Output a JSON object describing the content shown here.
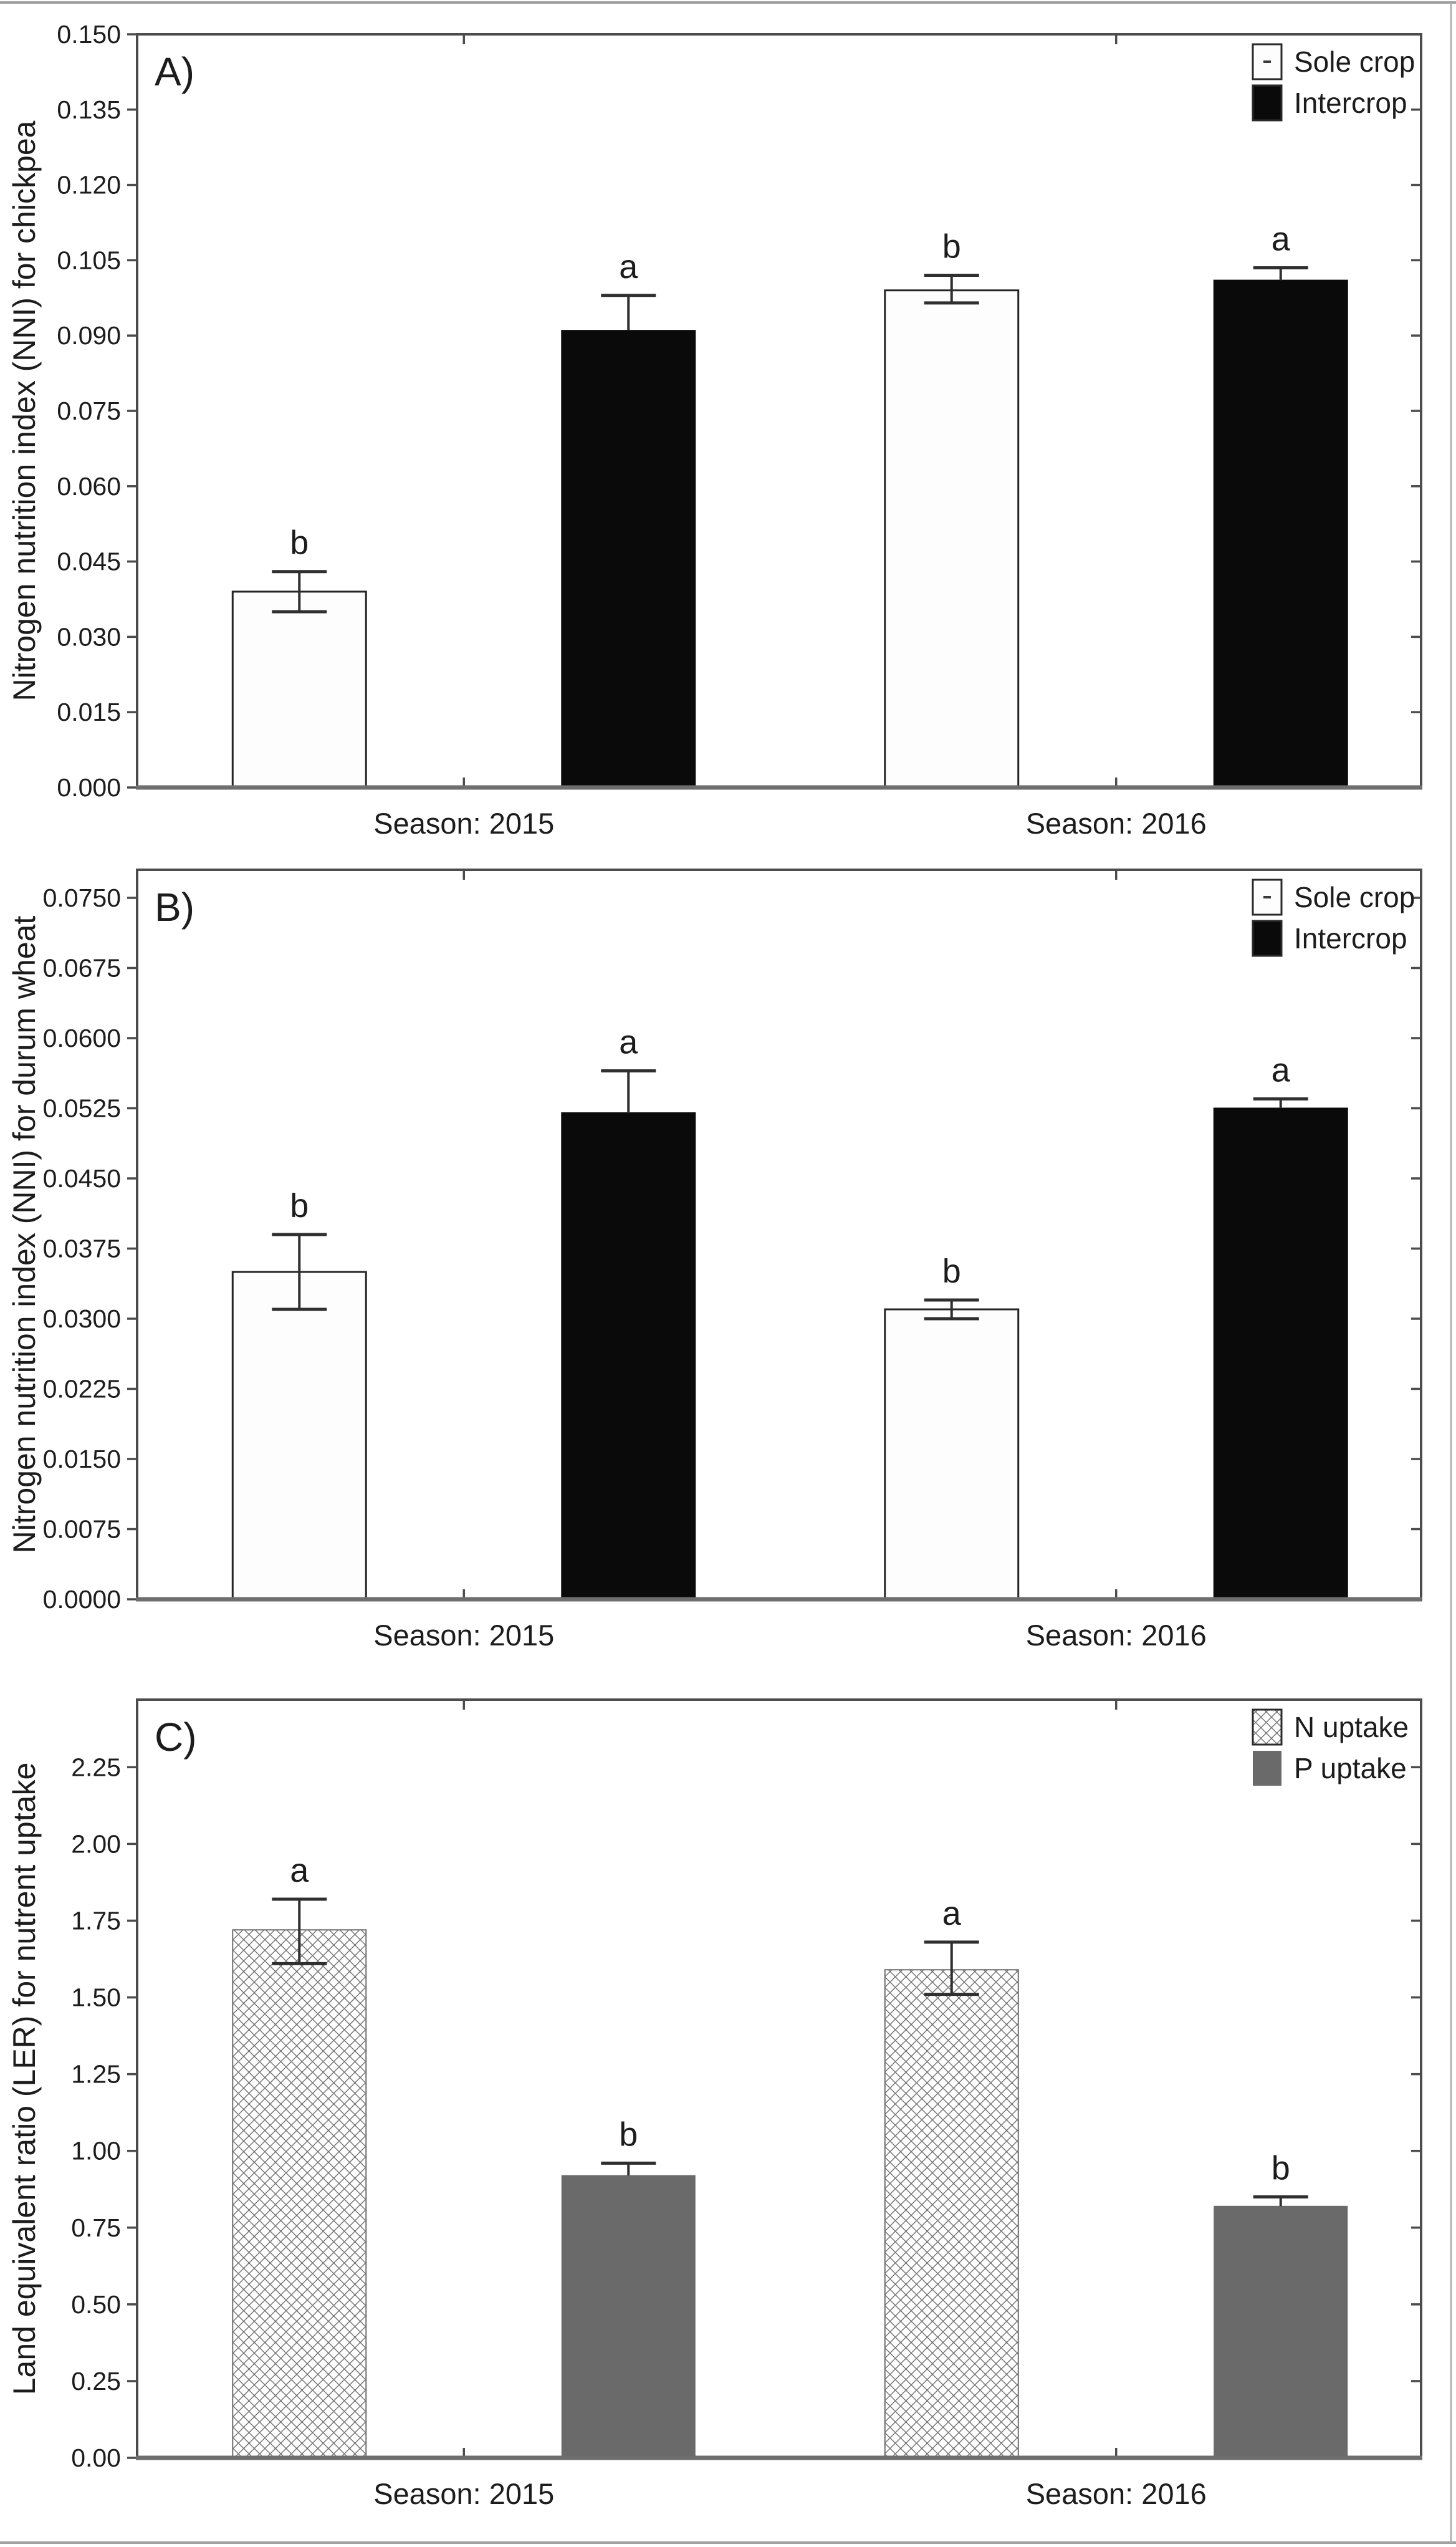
{
  "figure": {
    "background": "#ffffff",
    "edge_line_color": "#a0a0a0"
  },
  "colors": {
    "bar_white_fill": "#fdfdfd",
    "bar_black_fill": "#0a0a0a",
    "bar_gray_fill": "#6a6a6a",
    "hatch_stroke": "#6f6f6f",
    "bar_outline": "#262626",
    "frame": "#4c4c4c",
    "baseline_axis": "#6e6e6e",
    "whisker": "#2f2f2f",
    "text": "#1c1c1c"
  },
  "chart_data": [
    {
      "type": "bar",
      "panel_label": "A)",
      "ylabel": "Nitrogen nutrition index (NNI) for chickpea",
      "categories": [
        "Season: 2015",
        "Season: 2016"
      ],
      "ylim": [
        0,
        0.15
      ],
      "grid": false,
      "legend_position": "top-right-inside",
      "yticks": {
        "values": [
          0.15,
          0.135,
          0.12,
          0.105,
          0.09,
          0.075,
          0.06,
          0.045,
          0.03,
          0.015,
          0.0
        ],
        "labels": [
          "0.150",
          "0.135",
          "0.120",
          "0.105",
          "0.090",
          "0.075",
          "0.060",
          "0.045",
          "0.030",
          "0.015",
          "0.000"
        ]
      },
      "series": [
        {
          "name": "Sole crop",
          "style": "white",
          "values": [
            0.039,
            0.099
          ],
          "err_up": [
            0.043,
            0.102
          ],
          "err_down": [
            0.035,
            0.0965
          ],
          "letters": [
            "b",
            "b"
          ]
        },
        {
          "name": "Intercrop",
          "style": "black",
          "values": [
            0.091,
            0.101
          ],
          "err_up": [
            0.098,
            0.1035
          ],
          "err_down": [
            null,
            null
          ],
          "letters": [
            "a",
            "a"
          ]
        }
      ]
    },
    {
      "type": "bar",
      "panel_label": "B)",
      "ylabel": "Nitrogen nutrition index (NNI) for durum wheat",
      "categories": [
        "Season: 2015",
        "Season: 2016"
      ],
      "ylim": [
        0,
        0.078
      ],
      "grid": false,
      "legend_position": "top-right-inside",
      "yticks": {
        "values": [
          0.075,
          0.0675,
          0.06,
          0.0525,
          0.045,
          0.0375,
          0.03,
          0.0225,
          0.015,
          0.0075,
          0.0
        ],
        "labels": [
          "0.0750",
          "0.0675",
          "0.0600",
          "0.0525",
          "0.0450",
          "0.0375",
          "0.0300",
          "0.0225",
          "0.0150",
          "0.0075",
          "0.0000"
        ]
      },
      "series": [
        {
          "name": "Sole crop",
          "style": "white",
          "values": [
            0.035,
            0.031
          ],
          "err_up": [
            0.039,
            0.032
          ],
          "err_down": [
            0.031,
            0.03
          ],
          "letters": [
            "b",
            "b"
          ]
        },
        {
          "name": "Intercrop",
          "style": "black",
          "values": [
            0.052,
            0.0525
          ],
          "err_up": [
            0.0565,
            0.0535
          ],
          "err_down": [
            null,
            null
          ],
          "letters": [
            "a",
            "a"
          ]
        }
      ]
    },
    {
      "type": "bar",
      "panel_label": "C)",
      "ylabel": "Land equivalent ratio (LER) for nutrent uptake",
      "categories": [
        "Season: 2015",
        "Season: 2016"
      ],
      "ylim": [
        0,
        2.47
      ],
      "grid": false,
      "legend_position": "top-right-inside",
      "yticks": {
        "values": [
          2.25,
          2.0,
          1.75,
          1.5,
          1.25,
          1.0,
          0.75,
          0.5,
          0.25,
          0.0
        ],
        "labels": [
          "2.25",
          "2.00",
          "1.75",
          "1.50",
          "1.25",
          "1.00",
          "0.75",
          "0.50",
          "0.25",
          "0.00"
        ]
      },
      "series": [
        {
          "name": "N uptake",
          "style": "hatch",
          "values": [
            1.72,
            1.59
          ],
          "err_up": [
            1.82,
            1.68
          ],
          "err_down": [
            1.61,
            1.51
          ],
          "letters": [
            "a",
            "a"
          ]
        },
        {
          "name": "P uptake",
          "style": "gray",
          "values": [
            0.92,
            0.82
          ],
          "err_up": [
            0.96,
            0.85
          ],
          "err_down": [
            null,
            null
          ],
          "letters": [
            "b",
            "b"
          ]
        }
      ]
    }
  ]
}
